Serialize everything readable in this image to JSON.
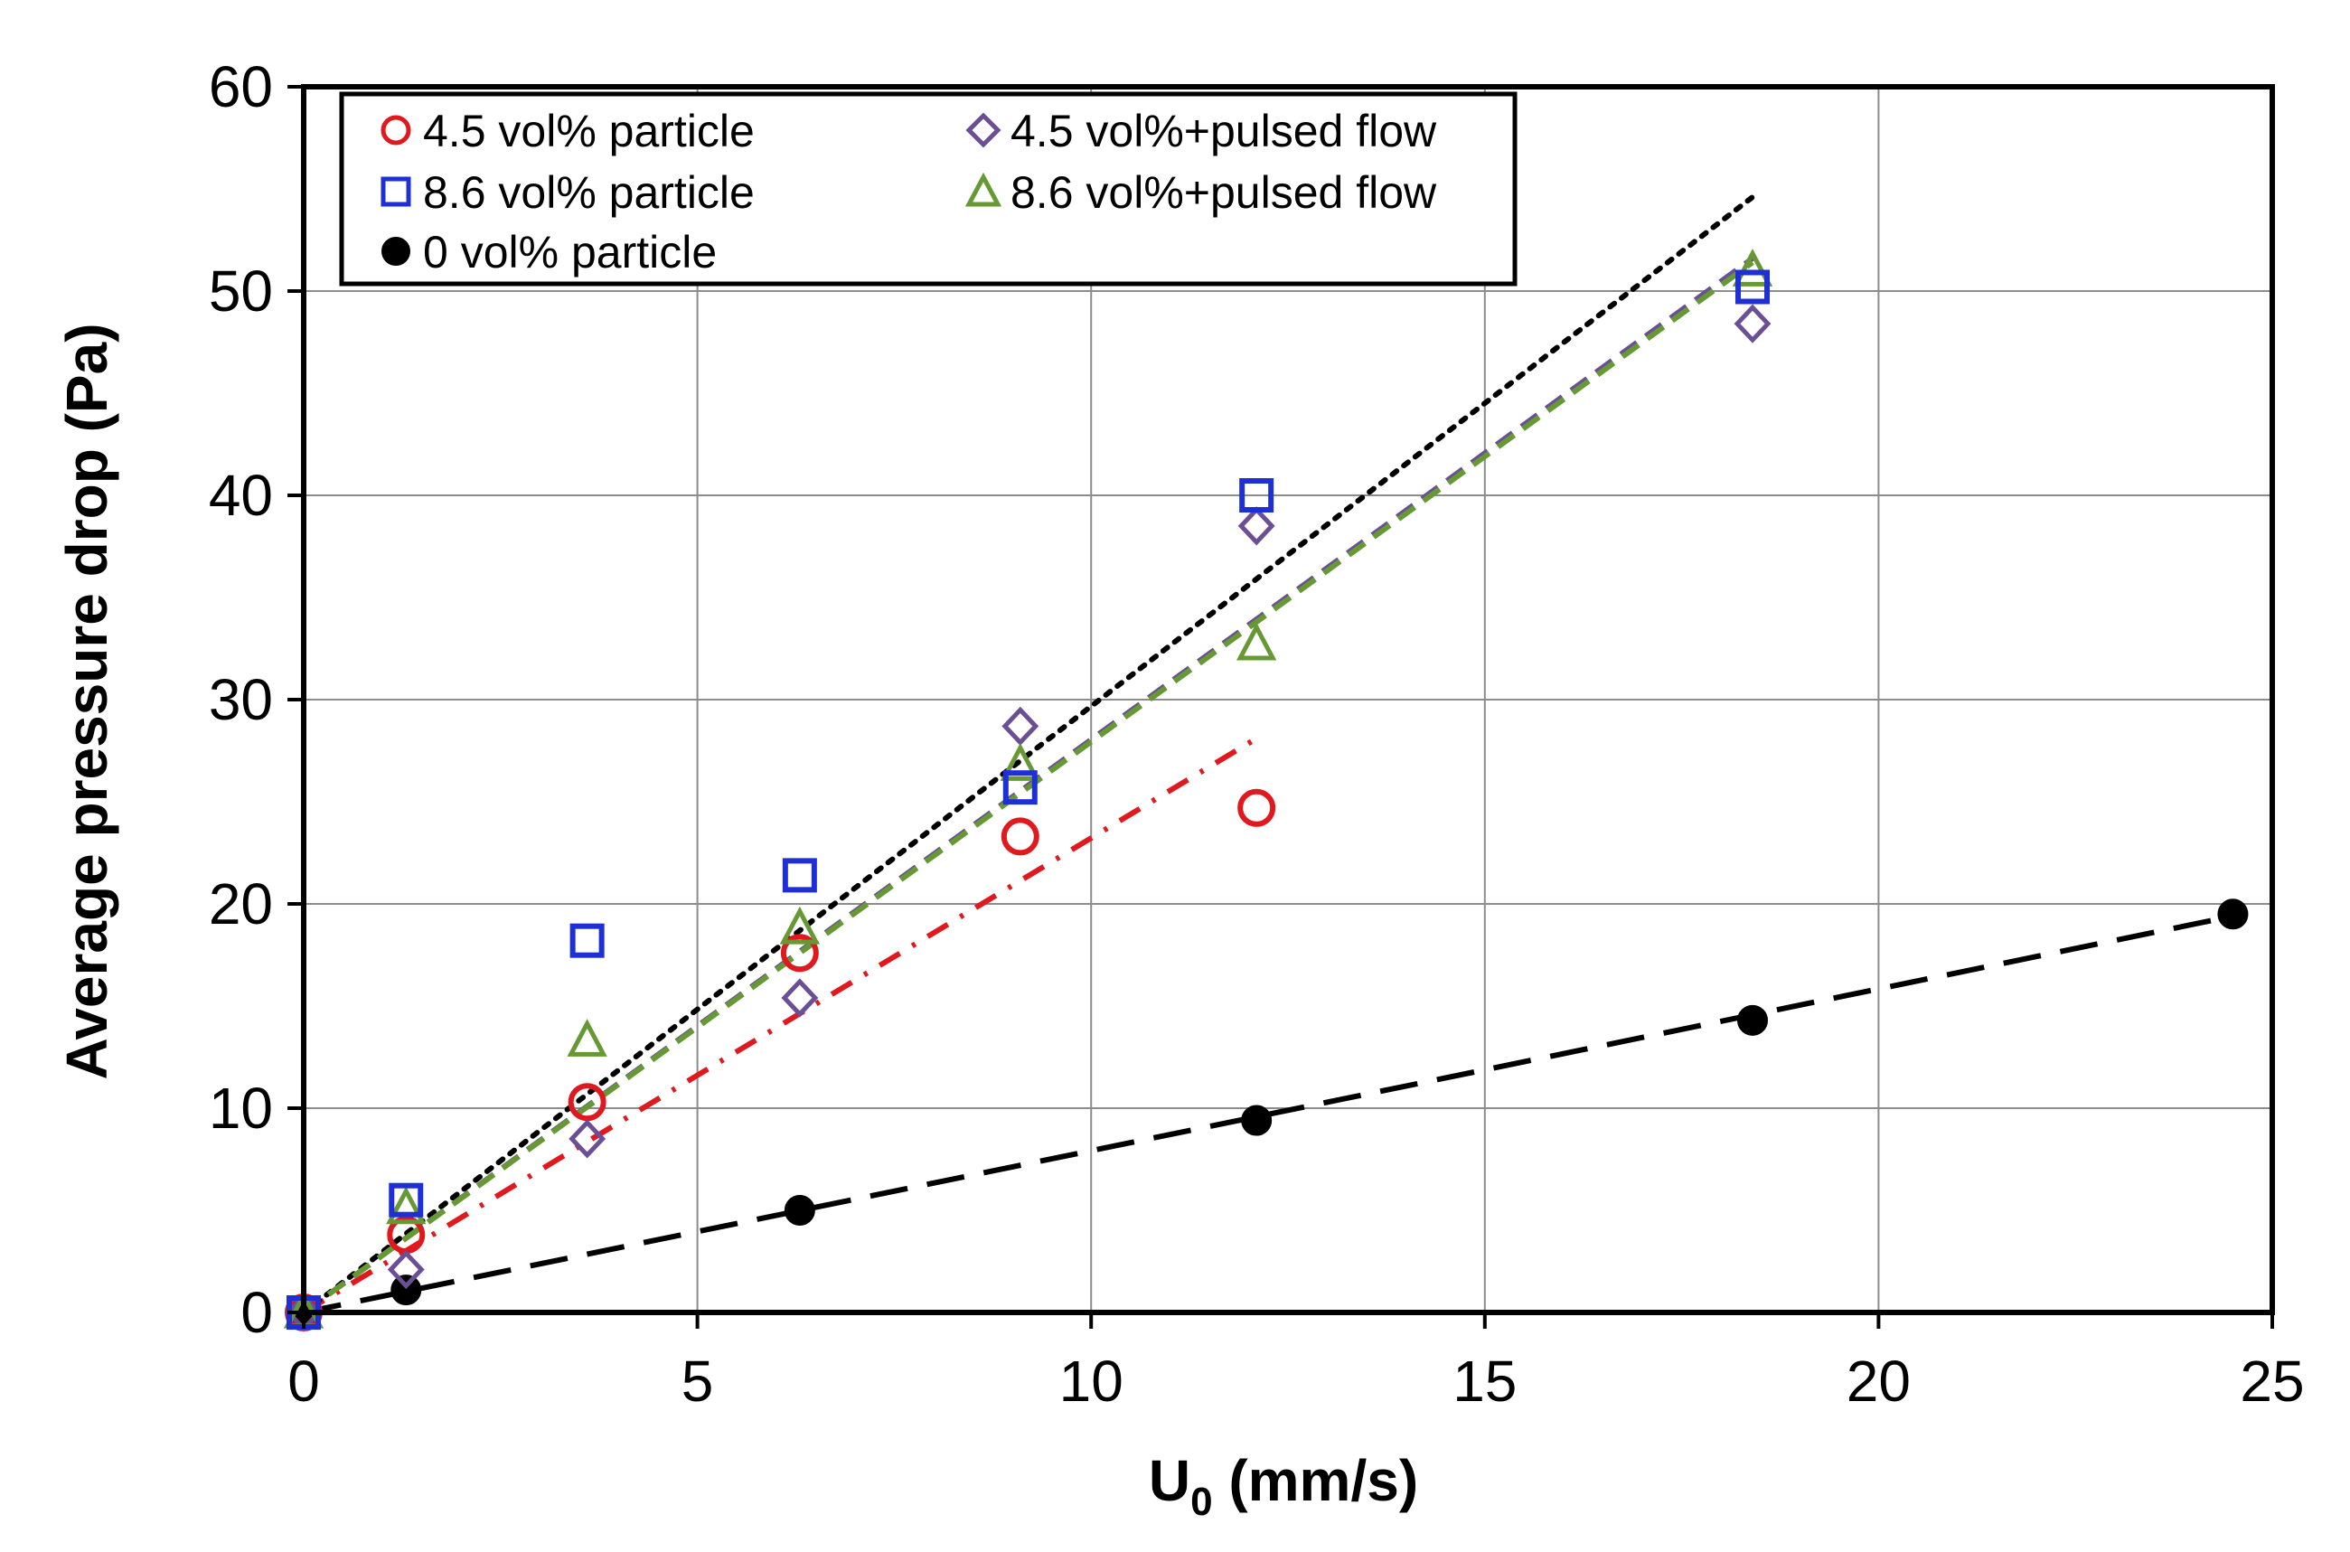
{
  "chart_data": {
    "type": "scatter",
    "title": "",
    "xlabel": "U",
    "xlabel_sub": "0",
    "xlabel_unit": " (mm/s)",
    "ylabel": "Average pressure drop (Pa)",
    "xlim": [
      0,
      25
    ],
    "ylim": [
      0,
      60
    ],
    "xticks": [
      "0",
      "5",
      "10",
      "15",
      "20",
      "25"
    ],
    "yticks": [
      "0",
      "10",
      "20",
      "30",
      "40",
      "50",
      "60"
    ],
    "grid": true,
    "legend_position": "top-left",
    "series": [
      {
        "name": "4.5 vol% particle",
        "marker": "circle-open",
        "color": "#e0191f",
        "x": [
          0,
          1.3,
          3.6,
          6.3,
          9.1,
          12.1
        ],
        "y": [
          0,
          3.8,
          10.3,
          17.6,
          23.3,
          24.7
        ],
        "trend": {
          "x": [
            0,
            12.1
          ],
          "y": [
            0,
            28.1
          ],
          "style": "dash-dot",
          "color": "#e0191f"
        }
      },
      {
        "name": "8.6 vol% particle",
        "marker": "square-open",
        "color": "#1f2fd6",
        "x": [
          0,
          1.3,
          3.6,
          6.3,
          9.1,
          12.1,
          18.4
        ],
        "y": [
          0,
          5.5,
          18.2,
          21.4,
          25.7,
          40.0,
          50.2
        ],
        "trend": {
          "x": [
            0,
            18.4
          ],
          "y": [
            0,
            54.6
          ],
          "style": "dotted",
          "color": "#000000"
        }
      },
      {
        "name": "0 vol% particle",
        "marker": "circle-filled",
        "color": "#000000",
        "x": [
          0,
          1.3,
          6.3,
          12.1,
          18.4,
          24.5
        ],
        "y": [
          0,
          1.1,
          5.0,
          9.4,
          14.3,
          19.5
        ],
        "trend": {
          "x": [
            0,
            24.5
          ],
          "y": [
            0,
            19.4
          ],
          "style": "long-dash",
          "color": "#000000"
        }
      },
      {
        "name": "4.5 vol%+pulsed flow",
        "marker": "diamond-open",
        "color": "#6b4f95",
        "x": [
          0,
          1.3,
          3.6,
          6.3,
          9.1,
          12.1,
          18.4
        ],
        "y": [
          0,
          2.1,
          8.5,
          15.4,
          28.7,
          38.5,
          48.4
        ],
        "trend": {
          "x": [
            0,
            18.4
          ],
          "y": [
            0,
            51.6
          ],
          "style": "dashed",
          "color": "#6b4f95"
        }
      },
      {
        "name": "8.6 vol%+pulsed flow",
        "marker": "triangle-open",
        "color": "#669933",
        "x": [
          0,
          1.3,
          3.6,
          6.3,
          9.1,
          12.1,
          18.4
        ],
        "y": [
          0,
          5.1,
          13.3,
          18.8,
          26.8,
          32.7,
          51.0
        ],
        "trend": {
          "x": [
            0,
            18.4
          ],
          "y": [
            0,
            51.4
          ],
          "style": "dashed",
          "color": "#669933"
        }
      }
    ],
    "legend": {
      "items": [
        {
          "label": "4.5 vol% particle",
          "series": 0
        },
        {
          "label": "4.5 vol%+pulsed flow",
          "series": 3
        },
        {
          "label": "8.6 vol% particle",
          "series": 1
        },
        {
          "label": "8.6 vol%+pulsed flow",
          "series": 4
        },
        {
          "label": "0 vol% particle",
          "series": 2
        }
      ]
    }
  }
}
